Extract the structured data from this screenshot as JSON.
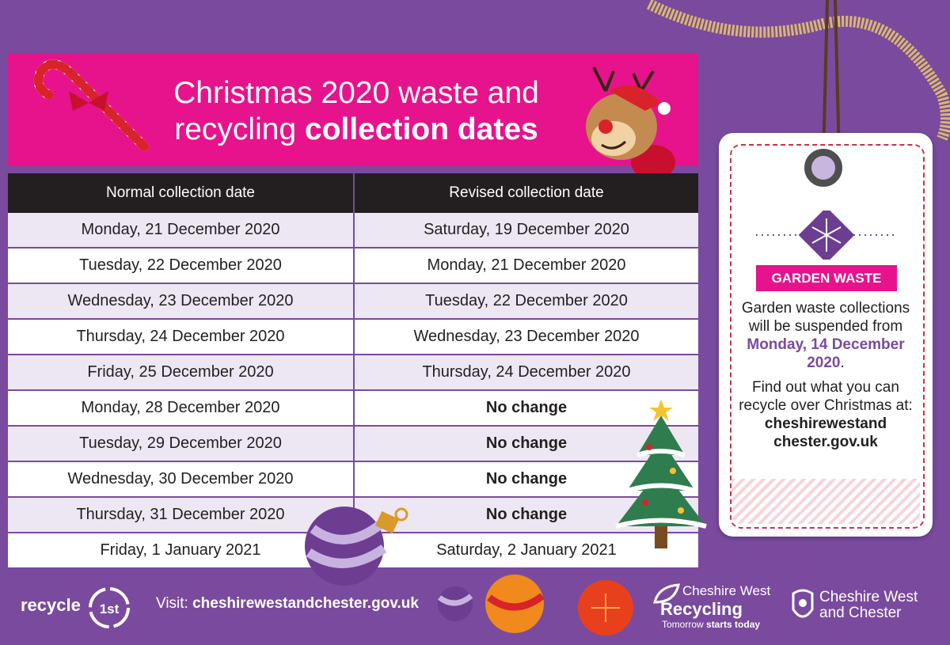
{
  "banner": {
    "title_line1": "Christmas 2020 waste and",
    "title_line2_normal": "recycling ",
    "title_line2_bold": "collection dates"
  },
  "table": {
    "headers": [
      "Normal collection date",
      "Revised collection date"
    ],
    "rows": [
      [
        "Monday, 21 December 2020",
        "Saturday, 19 December 2020"
      ],
      [
        "Tuesday, 22 December 2020",
        "Monday, 21 December 2020"
      ],
      [
        "Wednesday, 23 December 2020",
        "Tuesday, 22 December 2020"
      ],
      [
        "Thursday, 24 December 2020",
        "Wednesday, 23 December 2020"
      ],
      [
        "Friday, 25 December 2020",
        "Thursday, 24 December 2020"
      ],
      [
        "Monday, 28 December 2020",
        "No change"
      ],
      [
        "Tuesday, 29 December 2020",
        "No change"
      ],
      [
        "Wednesday, 30 December 2020",
        "No change"
      ],
      [
        "Thursday, 31 December 2020",
        "No change"
      ],
      [
        "Friday, 1 January 2021",
        "Saturday, 2 January 2021"
      ]
    ]
  },
  "tag": {
    "label": "GARDEN WASTE",
    "text1": "Garden waste collections will be suspended from",
    "date": "Monday, 14 December 2020",
    "text2": "Find out what you can recycle over Christmas at:",
    "site": "cheshirewestand chester.gov.uk"
  },
  "footer": {
    "recycle": "recycle",
    "recycle_badge": "1st",
    "visit_label": "Visit: ",
    "visit_url": "cheshirewestandchester.gov.uk",
    "cwr_name": "Cheshire West",
    "cwr_recycling": "Recycling",
    "cwr_tag_normal": "Tomorrow ",
    "cwr_tag_bold": "starts today",
    "council_line1": "Cheshire West",
    "council_line2": "and Chester"
  },
  "colors": {
    "background": "#7a4a9e",
    "pink": "#e6138c",
    "header": "#231f20",
    "row_alt": "#ece7f3"
  }
}
